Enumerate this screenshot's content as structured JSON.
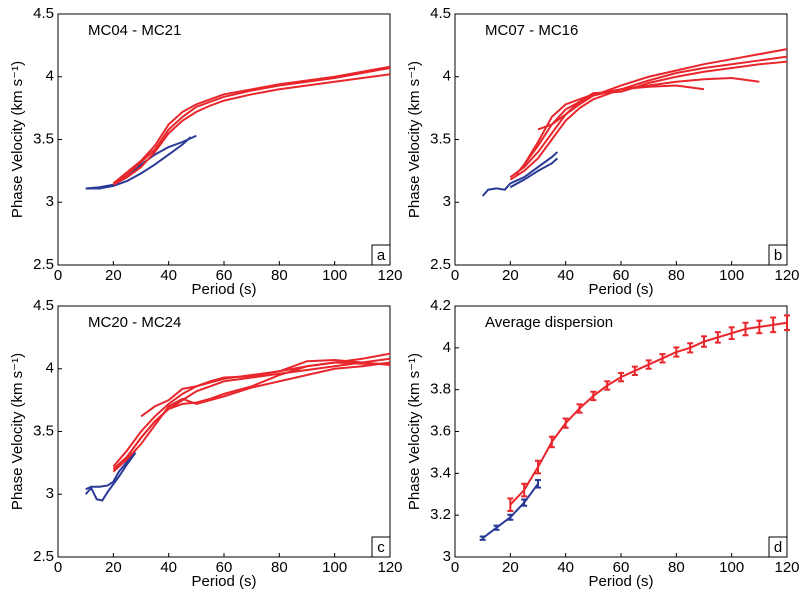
{
  "chart_data": [
    {
      "type": "line",
      "annotation": "MC04 - MC21",
      "panel_label": "a",
      "xlabel": "Period (s)",
      "ylabel": "Phase Velocity (km s⁻¹)",
      "xlim": [
        0,
        120
      ],
      "ylim": [
        2.5,
        4.5
      ],
      "xticks": [
        0,
        20,
        40,
        60,
        80,
        100,
        120
      ],
      "yticks": [
        2.5,
        3,
        3.5,
        4,
        4.5
      ],
      "series": [
        {
          "color": "#2b3a97",
          "x": [
            10,
            15,
            20,
            25,
            30,
            35,
            40,
            45,
            50
          ],
          "values": [
            3.11,
            3.12,
            3.14,
            3.2,
            3.3,
            3.38,
            3.44,
            3.48,
            3.53
          ]
        },
        {
          "color": "#2b3a97",
          "x": [
            10,
            15,
            20,
            25,
            30,
            35,
            40,
            45,
            48
          ],
          "values": [
            3.11,
            3.11,
            3.13,
            3.17,
            3.23,
            3.3,
            3.38,
            3.46,
            3.52
          ]
        },
        {
          "color": "#e8262b",
          "x": [
            20,
            25,
            30,
            35,
            40,
            45,
            50,
            55,
            60,
            70,
            80,
            90,
            100,
            110,
            120
          ],
          "values": [
            3.14,
            3.22,
            3.32,
            3.42,
            3.58,
            3.68,
            3.76,
            3.8,
            3.84,
            3.89,
            3.93,
            3.96,
            3.99,
            4.03,
            4.07
          ]
        },
        {
          "color": "#e8262b",
          "x": [
            20,
            25,
            30,
            35,
            40,
            45,
            50,
            55,
            60,
            70,
            80,
            90,
            100,
            110,
            120
          ],
          "values": [
            3.15,
            3.24,
            3.33,
            3.45,
            3.62,
            3.72,
            3.78,
            3.82,
            3.86,
            3.9,
            3.94,
            3.97,
            4.0,
            4.04,
            4.08
          ]
        },
        {
          "color": "#e8262b",
          "x": [
            20,
            25,
            30,
            35,
            40,
            45,
            50,
            55,
            60,
            70,
            80,
            90,
            100,
            110,
            120
          ],
          "values": [
            3.14,
            3.2,
            3.28,
            3.4,
            3.55,
            3.65,
            3.72,
            3.77,
            3.81,
            3.86,
            3.9,
            3.93,
            3.96,
            3.99,
            4.02
          ]
        }
      ]
    },
    {
      "type": "line",
      "annotation": "MC07 - MC16",
      "panel_label": "b",
      "xlabel": "Period (s)",
      "ylabel": "Phase Velocity (km s⁻¹)",
      "xlim": [
        0,
        120
      ],
      "ylim": [
        2.5,
        4.5
      ],
      "xticks": [
        0,
        20,
        40,
        60,
        80,
        100,
        120
      ],
      "yticks": [
        2.5,
        3,
        3.5,
        4,
        4.5
      ],
      "series": [
        {
          "color": "#2b3a97",
          "x": [
            10,
            12,
            15,
            18,
            20,
            25,
            30,
            35,
            37
          ],
          "values": [
            3.05,
            3.1,
            3.11,
            3.1,
            3.15,
            3.2,
            3.28,
            3.36,
            3.4
          ]
        },
        {
          "color": "#2b3a97",
          "x": [
            20,
            25,
            30,
            35,
            37
          ],
          "values": [
            3.12,
            3.18,
            3.25,
            3.31,
            3.35
          ]
        },
        {
          "color": "#e8262b",
          "x": [
            20,
            25,
            30,
            35,
            40,
            45,
            50,
            60,
            70,
            80,
            90,
            100,
            110,
            120
          ],
          "values": [
            3.2,
            3.28,
            3.4,
            3.55,
            3.7,
            3.78,
            3.85,
            3.93,
            4.0,
            4.05,
            4.1,
            4.14,
            4.18,
            4.22
          ]
        },
        {
          "color": "#e8262b",
          "x": [
            20,
            25,
            30,
            35,
            40,
            45,
            50,
            60,
            70,
            80,
            90,
            100,
            110,
            120
          ],
          "values": [
            3.18,
            3.25,
            3.35,
            3.5,
            3.65,
            3.75,
            3.82,
            3.9,
            3.97,
            4.03,
            4.07,
            4.1,
            4.13,
            4.16
          ]
        },
        {
          "color": "#e8262b",
          "x": [
            30,
            35,
            40,
            45,
            50,
            60,
            70,
            80,
            90,
            100,
            110,
            120
          ],
          "values": [
            3.58,
            3.62,
            3.7,
            3.8,
            3.87,
            3.88,
            3.95,
            4.0,
            4.04,
            4.07,
            4.1,
            4.12
          ]
        },
        {
          "color": "#e8262b",
          "x": [
            22,
            25,
            30,
            35,
            40,
            45,
            50,
            60,
            70,
            80,
            90,
            100,
            110
          ],
          "values": [
            3.22,
            3.3,
            3.45,
            3.62,
            3.74,
            3.8,
            3.85,
            3.9,
            3.93,
            3.96,
            3.98,
            3.99,
            3.96
          ]
        },
        {
          "color": "#e8262b",
          "x": [
            25,
            30,
            35,
            40,
            45,
            50,
            60,
            70,
            80,
            90
          ],
          "values": [
            3.3,
            3.48,
            3.68,
            3.78,
            3.82,
            3.86,
            3.9,
            3.92,
            3.93,
            3.9
          ]
        }
      ]
    },
    {
      "type": "line",
      "annotation": "MC20 - MC24",
      "panel_label": "c",
      "xlabel": "Period (s)",
      "ylabel": "Phase Velocity (km s⁻¹)",
      "xlim": [
        0,
        120
      ],
      "ylim": [
        2.5,
        4.5
      ],
      "xticks": [
        0,
        20,
        40,
        60,
        80,
        100,
        120
      ],
      "yticks": [
        2.5,
        3,
        3.5,
        4,
        4.5
      ],
      "series": [
        {
          "color": "#2b3a97",
          "x": [
            10,
            12,
            14,
            16,
            18,
            20,
            22,
            25,
            28
          ],
          "values": [
            3.0,
            3.05,
            2.96,
            2.95,
            3.02,
            3.08,
            3.14,
            3.24,
            3.33
          ]
        },
        {
          "color": "#2b3a97",
          "x": [
            10,
            12,
            15,
            18,
            20,
            22,
            25,
            28
          ],
          "values": [
            3.04,
            3.06,
            3.06,
            3.07,
            3.1,
            3.18,
            3.26,
            3.35
          ]
        },
        {
          "color": "#e8262b",
          "x": [
            20,
            25,
            30,
            35,
            40,
            45,
            50,
            60,
            70,
            80,
            90,
            100,
            110,
            120
          ],
          "values": [
            3.22,
            3.35,
            3.5,
            3.62,
            3.72,
            3.8,
            3.86,
            3.92,
            3.95,
            3.98,
            4.02,
            4.05,
            4.08,
            4.12
          ]
        },
        {
          "color": "#e8262b",
          "x": [
            20,
            25,
            30,
            35,
            40,
            45,
            50,
            60,
            70,
            80,
            90,
            100,
            110,
            120
          ],
          "values": [
            3.2,
            3.3,
            3.45,
            3.58,
            3.68,
            3.75,
            3.82,
            3.9,
            3.93,
            3.96,
            3.99,
            4.02,
            4.05,
            4.08
          ]
        },
        {
          "color": "#e8262b",
          "x": [
            30,
            35,
            40,
            45,
            50,
            55,
            60,
            70,
            80,
            90,
            100,
            110,
            120
          ],
          "values": [
            3.62,
            3.7,
            3.75,
            3.84,
            3.86,
            3.9,
            3.93,
            3.94,
            3.98,
            4.06,
            4.07,
            4.05,
            4.03
          ]
        },
        {
          "color": "#e8262b",
          "x": [
            25,
            30,
            35,
            40,
            45,
            50,
            55,
            60,
            70,
            80,
            90,
            100,
            110,
            120
          ],
          "values": [
            3.3,
            3.45,
            3.58,
            3.68,
            3.72,
            3.73,
            3.76,
            3.8,
            3.86,
            3.95,
            4.02,
            4.05,
            4.04,
            4.04
          ]
        },
        {
          "color": "#e8262b",
          "x": [
            20,
            25,
            30,
            35,
            40,
            45,
            50,
            60,
            70,
            80,
            90,
            100,
            110,
            120
          ],
          "values": [
            3.18,
            3.28,
            3.4,
            3.55,
            3.7,
            3.76,
            3.72,
            3.78,
            3.85,
            3.9,
            3.95,
            4.0,
            4.02,
            4.05
          ]
        }
      ]
    },
    {
      "type": "line",
      "annotation": "Average dispersion",
      "panel_label": "d",
      "xlabel": "Period (s)",
      "ylabel": "Phase Velocity (km s⁻¹)",
      "xlim": [
        0,
        120
      ],
      "ylim": [
        3,
        4.2
      ],
      "xticks": [
        0,
        20,
        40,
        60,
        80,
        100,
        120
      ],
      "yticks": [
        3,
        3.2,
        3.4,
        3.6,
        3.8,
        4,
        4.2
      ],
      "series": [
        {
          "color": "#2b3a97",
          "x": [
            10,
            15,
            20,
            25,
            30
          ],
          "values": [
            3.09,
            3.14,
            3.19,
            3.26,
            3.35
          ],
          "errors": [
            0.008,
            0.01,
            0.012,
            0.015,
            0.018
          ]
        },
        {
          "color": "#e8262b",
          "x": [
            20,
            25,
            30,
            35,
            40,
            45,
            50,
            55,
            60,
            65,
            70,
            75,
            80,
            85,
            90,
            95,
            100,
            105,
            110,
            115,
            120
          ],
          "values": [
            3.25,
            3.32,
            3.43,
            3.55,
            3.64,
            3.71,
            3.77,
            3.82,
            3.86,
            3.89,
            3.92,
            3.95,
            3.98,
            4.0,
            4.03,
            4.05,
            4.07,
            4.09,
            4.1,
            4.11,
            4.12
          ],
          "errors": [
            0.03,
            0.03,
            0.03,
            0.025,
            0.022,
            0.02,
            0.02,
            0.02,
            0.02,
            0.02,
            0.02,
            0.02,
            0.022,
            0.022,
            0.025,
            0.025,
            0.028,
            0.03,
            0.03,
            0.035,
            0.035
          ]
        }
      ]
    }
  ]
}
